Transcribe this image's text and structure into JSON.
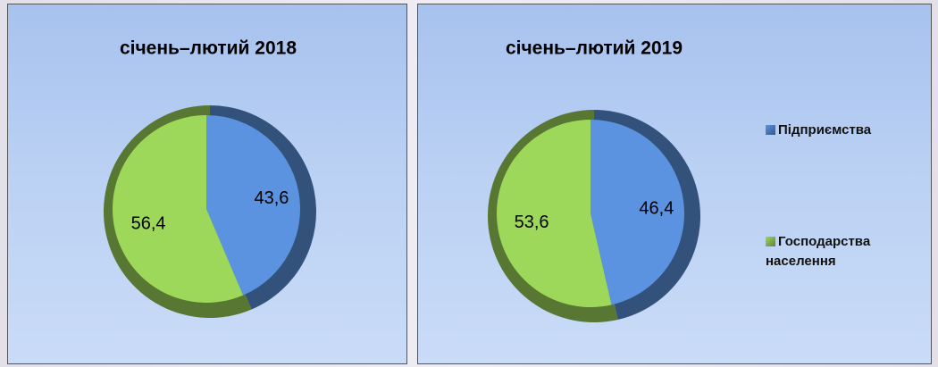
{
  "chart_data": [
    {
      "type": "pie",
      "title": "січень–лютий 2018",
      "values": [
        43.6,
        56.4
      ],
      "value_labels": [
        "43,6",
        "56,4"
      ],
      "colors": [
        "#5b93e0",
        "#9ed85a"
      ]
    },
    {
      "type": "pie",
      "title": "січень–лютий 2019",
      "categories": [
        "Підприємства",
        "Господарства населення"
      ],
      "values": [
        46.4,
        53.6
      ],
      "value_labels": [
        "46,4",
        "53,6"
      ],
      "colors": [
        "#5b93e0",
        "#9ed85a"
      ],
      "legend": "right"
    }
  ]
}
